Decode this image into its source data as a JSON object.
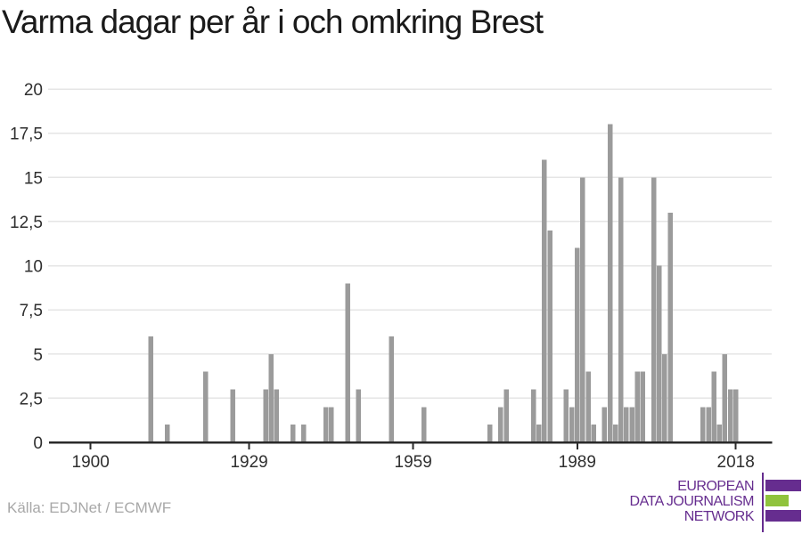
{
  "header": {
    "title": "Varma dagar per år i och omkring Brest"
  },
  "footer": {
    "source": "Källa: EDJNet / ECMWF",
    "logo": {
      "lines": [
        "EUROPEAN",
        "DATA JOURNALISM",
        "NETWORK"
      ],
      "purple": "#662d8f",
      "green": "#90c33d"
    }
  },
  "colors": {
    "background": "#ffffff",
    "title": "#1a1a1a",
    "bar": "#9b9b9b",
    "grid": "#e5e5e5",
    "axis": "#2a2a2a",
    "tick_label": "#2f2f2f",
    "source_text": "#a8a8a8"
  },
  "chart_data": {
    "type": "bar",
    "title": "Varma dagar per år i och omkring Brest",
    "series_name": "Varma dagar per år",
    "xlabel": "",
    "ylabel": "",
    "x": [
      1911,
      1914,
      1921,
      1926,
      1932,
      1933,
      1934,
      1937,
      1939,
      1943,
      1944,
      1947,
      1949,
      1955,
      1961,
      1973,
      1975,
      1976,
      1981,
      1982,
      1983,
      1984,
      1987,
      1988,
      1989,
      1990,
      1991,
      1992,
      1994,
      1995,
      1996,
      1997,
      1998,
      1999,
      2000,
      2001,
      2003,
      2004,
      2005,
      2006,
      2012,
      2013,
      2014,
      2015,
      2016,
      2017,
      2018
    ],
    "values": [
      6,
      1,
      4,
      3,
      3,
      5,
      3,
      1,
      1,
      2,
      2,
      9,
      3,
      6,
      2,
      1,
      2,
      3,
      3,
      1,
      16,
      12,
      3,
      2,
      11,
      15,
      4,
      1,
      2,
      18,
      1,
      15,
      2,
      2,
      4,
      4,
      15,
      10,
      5,
      13,
      2,
      2,
      4,
      1,
      5,
      3,
      3
    ],
    "x_ticks": [
      1900,
      1929,
      1959,
      1989,
      2018
    ],
    "x_tick_labels": [
      "1900",
      "1929",
      "1959",
      "1989",
      "2018"
    ],
    "y_ticks": [
      0,
      2.5,
      5,
      7.5,
      10,
      12.5,
      15,
      17.5,
      20
    ],
    "y_tick_labels": [
      "0",
      "2,5",
      "5",
      "7,5",
      "10",
      "12,5",
      "15",
      "17,5",
      "20"
    ],
    "xlim": [
      1892.4,
      2024.6
    ],
    "ylim": [
      0,
      20
    ],
    "grid": true,
    "legend": "none",
    "bar_color": "#9b9b9b"
  }
}
